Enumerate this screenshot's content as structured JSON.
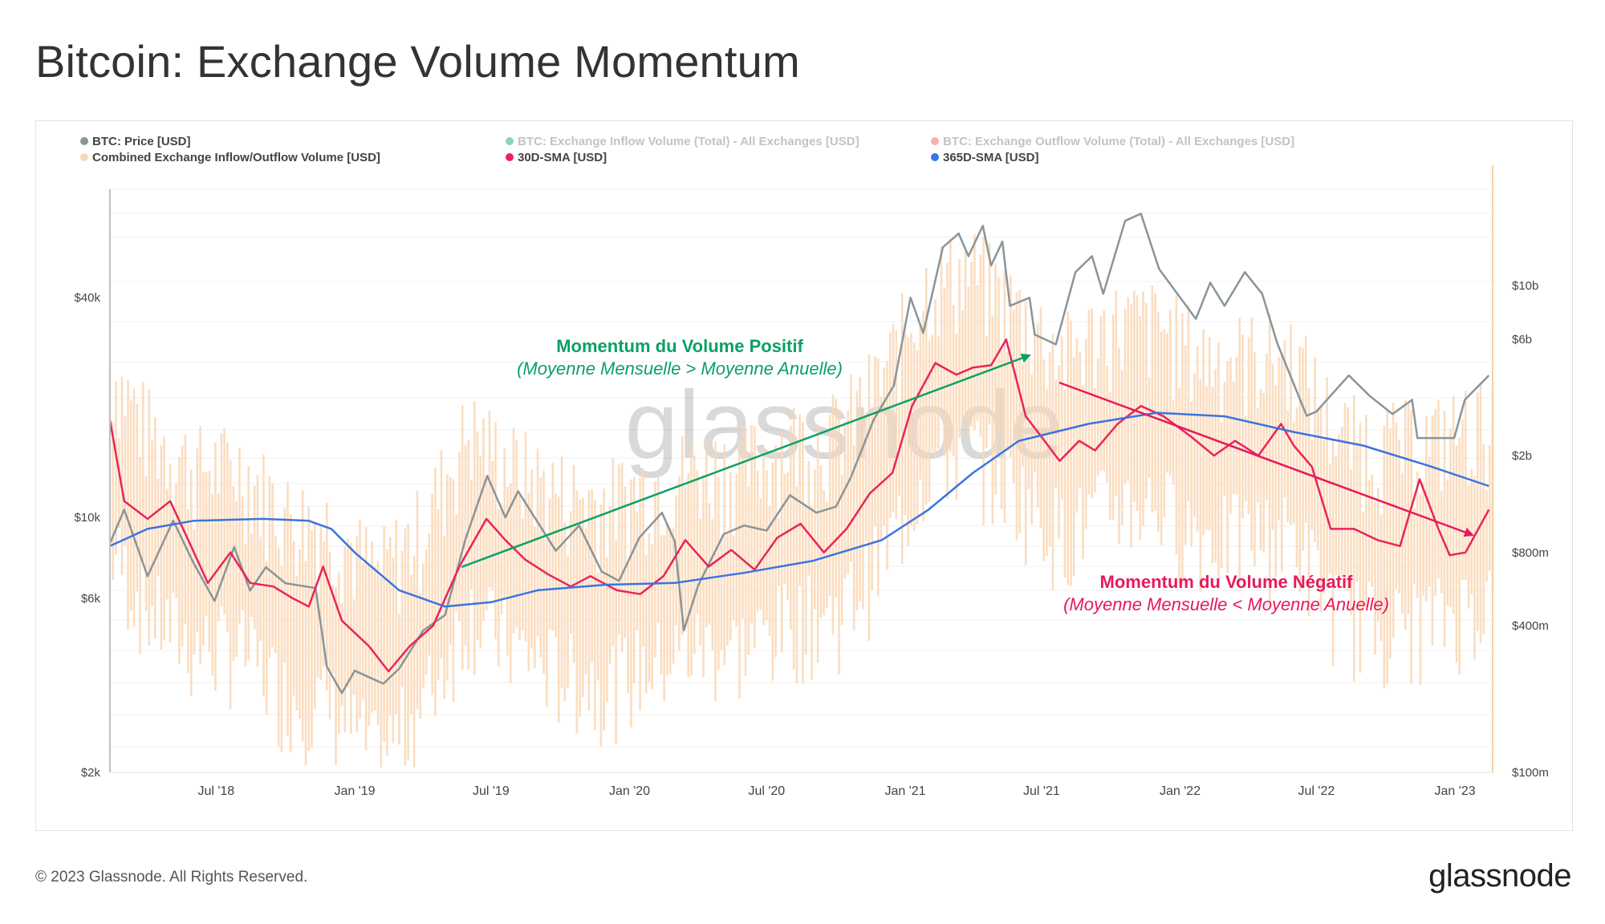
{
  "title": "Bitcoin: Exchange Volume Momentum",
  "footer": {
    "copyright": "© 2023 Glassnode. All Rights Reserved.",
    "logo": "glassnode"
  },
  "watermark": "glassnode",
  "colors": {
    "price": "#8a9599",
    "inflow": "#1aa37a",
    "outflow": "#f06060",
    "combined": "#fad7b5",
    "sma30": "#e8255a",
    "sma365": "#3b74e0",
    "positive": "#0aa066",
    "negative": "#e8195b"
  },
  "legend": [
    {
      "label": "BTC: Price [USD]",
      "color": "#8a9599",
      "faded": false
    },
    {
      "label": "BTC: Exchange Inflow Volume (Total) - All Exchanges [USD]",
      "color": "#1aa37a",
      "faded": true
    },
    {
      "label": "BTC: Exchange Outflow Volume (Total) - All Exchanges [USD]",
      "color": "#f06060",
      "faded": true
    },
    {
      "label": "Combined Exchange Inflow/Outflow Volume [USD]",
      "color": "#fad7b5",
      "faded": false
    },
    {
      "label": "30D-SMA [USD]",
      "color": "#e8255a",
      "faded": false
    },
    {
      "label": "365D-SMA [USD]",
      "color": "#3b74e0",
      "faded": false
    }
  ],
  "annotations": {
    "positive": {
      "title": "Momentum du Volume Positif",
      "subtitle": "(Moyenne Mensuelle > Moyenne Anuelle)"
    },
    "negative": {
      "title": "Momentum du Volume Négatif",
      "subtitle": "(Moyenne Mensuelle < Moyenne Anuelle)"
    }
  },
  "chart_data": {
    "type": "line",
    "xlim": [
      "2018-02-10",
      "2023-02-20"
    ],
    "x_ticks": [
      {
        "label": "Jul '18",
        "date": "2018-07-01"
      },
      {
        "label": "Jan '19",
        "date": "2019-01-01"
      },
      {
        "label": "Jul '19",
        "date": "2019-07-01"
      },
      {
        "label": "Jan '20",
        "date": "2020-01-01"
      },
      {
        "label": "Jul '20",
        "date": "2020-07-01"
      },
      {
        "label": "Jan '21",
        "date": "2021-01-01"
      },
      {
        "label": "Jul '21",
        "date": "2021-07-01"
      },
      {
        "label": "Jan '22",
        "date": "2022-01-01"
      },
      {
        "label": "Jul '22",
        "date": "2022-07-01"
      },
      {
        "label": "Jan '23",
        "date": "2023-01-01"
      }
    ],
    "y_left": {
      "scale": "log",
      "range": [
        2000,
        90000
      ],
      "ticks": [
        {
          "label": "$2k",
          "value": 2000
        },
        {
          "label": "$6k",
          "value": 6000
        },
        {
          "label": "$10k",
          "value": 10000
        },
        {
          "label": "$40k",
          "value": 40000
        }
      ]
    },
    "y_right": {
      "scale": "log",
      "range": [
        100000000,
        30000000000
      ],
      "ticks": [
        {
          "label": "$100m",
          "value": 100000000
        },
        {
          "label": "$400m",
          "value": 400000000
        },
        {
          "label": "$800m",
          "value": 800000000
        },
        {
          "label": "$2b",
          "value": 2000000000
        },
        {
          "label": "$6b",
          "value": 6000000000
        },
        {
          "label": "$10b",
          "value": 10000000000
        }
      ]
    },
    "series": [
      {
        "name": "BTC: Price [USD]",
        "axis": "left",
        "points": [
          [
            "2018-02-10",
            8500
          ],
          [
            "2018-03-01",
            10500
          ],
          [
            "2018-04-01",
            6900
          ],
          [
            "2018-05-05",
            9800
          ],
          [
            "2018-06-01",
            7500
          ],
          [
            "2018-06-29",
            5900
          ],
          [
            "2018-07-25",
            8300
          ],
          [
            "2018-08-15",
            6300
          ],
          [
            "2018-09-05",
            7300
          ],
          [
            "2018-10-01",
            6600
          ],
          [
            "2018-11-10",
            6400
          ],
          [
            "2018-11-25",
            3900
          ],
          [
            "2018-12-15",
            3300
          ],
          [
            "2019-01-01",
            3800
          ],
          [
            "2019-02-08",
            3500
          ],
          [
            "2019-03-01",
            3850
          ],
          [
            "2019-04-02",
            4900
          ],
          [
            "2019-05-01",
            5400
          ],
          [
            "2019-05-28",
            8700
          ],
          [
            "2019-06-26",
            13000
          ],
          [
            "2019-07-20",
            10000
          ],
          [
            "2019-08-06",
            11800
          ],
          [
            "2019-09-01",
            9700
          ],
          [
            "2019-09-25",
            8100
          ],
          [
            "2019-10-26",
            9500
          ],
          [
            "2019-11-25",
            7100
          ],
          [
            "2019-12-18",
            6700
          ],
          [
            "2020-01-14",
            8800
          ],
          [
            "2020-02-13",
            10300
          ],
          [
            "2020-03-01",
            8600
          ],
          [
            "2020-03-13",
            4900
          ],
          [
            "2020-04-01",
            6500
          ],
          [
            "2020-05-05",
            9000
          ],
          [
            "2020-06-01",
            9500
          ],
          [
            "2020-07-01",
            9200
          ],
          [
            "2020-08-01",
            11500
          ],
          [
            "2020-09-05",
            10300
          ],
          [
            "2020-10-01",
            10700
          ],
          [
            "2020-10-21",
            12900
          ],
          [
            "2020-11-20",
            18500
          ],
          [
            "2020-12-17",
            23000
          ],
          [
            "2021-01-08",
            40000
          ],
          [
            "2021-01-25",
            32000
          ],
          [
            "2021-02-20",
            55000
          ],
          [
            "2021-03-13",
            60000
          ],
          [
            "2021-03-26",
            52000
          ],
          [
            "2021-04-14",
            63000
          ],
          [
            "2021-04-25",
            49000
          ],
          [
            "2021-05-10",
            57000
          ],
          [
            "2021-05-20",
            38000
          ],
          [
            "2021-06-15",
            40000
          ],
          [
            "2021-06-22",
            31700
          ],
          [
            "2021-07-20",
            29800
          ],
          [
            "2021-08-15",
            47000
          ],
          [
            "2021-09-06",
            52000
          ],
          [
            "2021-09-21",
            41000
          ],
          [
            "2021-10-20",
            65000
          ],
          [
            "2021-11-10",
            68000
          ],
          [
            "2021-12-04",
            48000
          ],
          [
            "2022-01-22",
            35000
          ],
          [
            "2022-02-10",
            44000
          ],
          [
            "2022-03-01",
            38000
          ],
          [
            "2022-03-28",
            47000
          ],
          [
            "2022-04-20",
            41000
          ],
          [
            "2022-05-10",
            30000
          ],
          [
            "2022-06-18",
            19000
          ],
          [
            "2022-07-01",
            19500
          ],
          [
            "2022-08-13",
            24500
          ],
          [
            "2022-09-10",
            21500
          ],
          [
            "2022-10-10",
            19200
          ],
          [
            "2022-11-05",
            21000
          ],
          [
            "2022-11-12",
            16500
          ],
          [
            "2022-12-31",
            16500
          ],
          [
            "2023-01-14",
            21000
          ],
          [
            "2023-02-15",
            24500
          ]
        ]
      },
      {
        "name": "30D-SMA [USD]",
        "axis": "right",
        "points": [
          [
            "2018-02-10",
            2800000000
          ],
          [
            "2018-03-01",
            1300000000
          ],
          [
            "2018-04-01",
            1100000000
          ],
          [
            "2018-05-01",
            1300000000
          ],
          [
            "2018-05-25",
            900000000
          ],
          [
            "2018-06-20",
            600000000
          ],
          [
            "2018-07-20",
            800000000
          ],
          [
            "2018-08-15",
            600000000
          ],
          [
            "2018-09-15",
            580000000
          ],
          [
            "2018-10-10",
            520000000
          ],
          [
            "2018-11-01",
            480000000
          ],
          [
            "2018-11-20",
            700000000
          ],
          [
            "2018-12-15",
            420000000
          ],
          [
            "2019-01-20",
            330000000
          ],
          [
            "2019-02-15",
            260000000
          ],
          [
            "2019-03-15",
            330000000
          ],
          [
            "2019-04-15",
            400000000
          ],
          [
            "2019-05-20",
            700000000
          ],
          [
            "2019-06-25",
            1100000000
          ],
          [
            "2019-07-20",
            900000000
          ],
          [
            "2019-08-15",
            750000000
          ],
          [
            "2019-09-15",
            650000000
          ],
          [
            "2019-10-15",
            580000000
          ],
          [
            "2019-11-10",
            640000000
          ],
          [
            "2019-12-15",
            560000000
          ],
          [
            "2020-01-15",
            540000000
          ],
          [
            "2020-02-15",
            640000000
          ],
          [
            "2020-03-15",
            900000000
          ],
          [
            "2020-04-15",
            700000000
          ],
          [
            "2020-05-15",
            820000000
          ],
          [
            "2020-06-15",
            680000000
          ],
          [
            "2020-07-15",
            920000000
          ],
          [
            "2020-08-15",
            1050000000
          ],
          [
            "2020-09-15",
            800000000
          ],
          [
            "2020-10-15",
            1000000000
          ],
          [
            "2020-11-15",
            1400000000
          ],
          [
            "2020-12-15",
            1700000000
          ],
          [
            "2021-01-10",
            3200000000
          ],
          [
            "2021-02-10",
            4800000000
          ],
          [
            "2021-03-10",
            4300000000
          ],
          [
            "2021-04-01",
            4600000000
          ],
          [
            "2021-04-25",
            4700000000
          ],
          [
            "2021-05-15",
            6000000000
          ],
          [
            "2021-06-10",
            2900000000
          ],
          [
            "2021-07-05",
            2300000000
          ],
          [
            "2021-07-25",
            1900000000
          ],
          [
            "2021-08-20",
            2300000000
          ],
          [
            "2021-09-10",
            2100000000
          ],
          [
            "2021-10-10",
            2700000000
          ],
          [
            "2021-11-10",
            3200000000
          ],
          [
            "2021-12-10",
            2900000000
          ],
          [
            "2022-01-15",
            2400000000
          ],
          [
            "2022-02-15",
            2000000000
          ],
          [
            "2022-03-15",
            2300000000
          ],
          [
            "2022-04-15",
            2000000000
          ],
          [
            "2022-05-15",
            2700000000
          ],
          [
            "2022-06-01",
            2200000000
          ],
          [
            "2022-06-25",
            1800000000
          ],
          [
            "2022-07-20",
            1000000000
          ],
          [
            "2022-08-20",
            1000000000
          ],
          [
            "2022-09-20",
            900000000
          ],
          [
            "2022-10-20",
            850000000
          ],
          [
            "2022-11-15",
            1600000000
          ],
          [
            "2022-12-10",
            1000000000
          ],
          [
            "2022-12-25",
            780000000
          ],
          [
            "2023-01-15",
            800000000
          ],
          [
            "2023-02-15",
            1200000000
          ]
        ]
      },
      {
        "name": "365D-SMA [USD]",
        "axis": "right",
        "points": [
          [
            "2018-02-10",
            850000000
          ],
          [
            "2018-04-01",
            1000000000
          ],
          [
            "2018-06-01",
            1080000000
          ],
          [
            "2018-09-01",
            1100000000
          ],
          [
            "2018-11-01",
            1080000000
          ],
          [
            "2018-12-01",
            1000000000
          ],
          [
            "2019-01-01",
            800000000
          ],
          [
            "2019-03-01",
            560000000
          ],
          [
            "2019-05-01",
            480000000
          ],
          [
            "2019-07-01",
            500000000
          ],
          [
            "2019-09-01",
            560000000
          ],
          [
            "2019-12-01",
            590000000
          ],
          [
            "2020-03-01",
            600000000
          ],
          [
            "2020-06-01",
            660000000
          ],
          [
            "2020-09-01",
            740000000
          ],
          [
            "2020-12-01",
            900000000
          ],
          [
            "2021-02-01",
            1200000000
          ],
          [
            "2021-04-01",
            1700000000
          ],
          [
            "2021-06-01",
            2300000000
          ],
          [
            "2021-09-01",
            2700000000
          ],
          [
            "2021-12-01",
            3000000000
          ],
          [
            "2022-03-01",
            2900000000
          ],
          [
            "2022-06-01",
            2500000000
          ],
          [
            "2022-09-01",
            2200000000
          ],
          [
            "2022-12-01",
            1800000000
          ],
          [
            "2023-02-15",
            1500000000
          ]
        ]
      },
      {
        "name": "Combined Exchange Inflow/Outflow Volume [USD]",
        "axis": "right",
        "points": [
          [
            "2018-02-10",
            1800000000
          ],
          [
            "2018-04-01",
            1000000000
          ],
          [
            "2018-06-01",
            700000000
          ],
          [
            "2018-08-01",
            700000000
          ],
          [
            "2018-10-01",
            450000000
          ],
          [
            "2018-12-01",
            400000000
          ],
          [
            "2019-02-01",
            250000000
          ],
          [
            "2019-04-01",
            400000000
          ],
          [
            "2019-06-01",
            1000000000
          ],
          [
            "2019-08-01",
            700000000
          ],
          [
            "2019-10-01",
            550000000
          ],
          [
            "2019-12-01",
            500000000
          ],
          [
            "2020-02-01",
            600000000
          ],
          [
            "2020-04-01",
            700000000
          ],
          [
            "2020-06-01",
            700000000
          ],
          [
            "2020-08-01",
            900000000
          ],
          [
            "2020-10-01",
            950000000
          ],
          [
            "2020-12-01",
            1600000000
          ],
          [
            "2021-02-01",
            4000000000
          ],
          [
            "2021-04-01",
            4500000000
          ],
          [
            "2021-06-01",
            3000000000
          ],
          [
            "2021-08-01",
            2000000000
          ],
          [
            "2021-10-01",
            2700000000
          ],
          [
            "2021-12-01",
            2700000000
          ],
          [
            "2022-02-01",
            2000000000
          ],
          [
            "2022-04-01",
            2000000000
          ],
          [
            "2022-06-01",
            2000000000
          ],
          [
            "2022-08-01",
            950000000
          ],
          [
            "2022-10-01",
            850000000
          ],
          [
            "2022-12-01",
            900000000
          ],
          [
            "2023-02-15",
            1100000000
          ]
        ]
      }
    ]
  }
}
